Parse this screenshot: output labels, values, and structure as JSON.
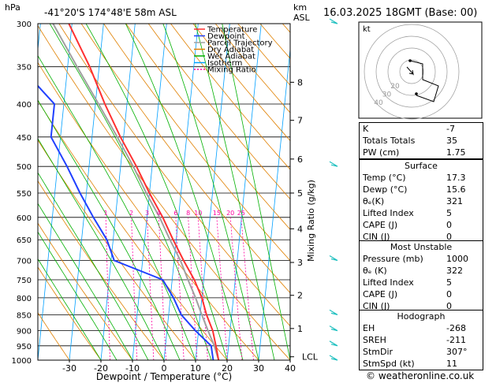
{
  "header": {
    "hpa_unit": "hPa",
    "location": "-41°20'S  174°48'E  58m  ASL",
    "km_unit": "km",
    "asl": "ASL",
    "datetime": "16.03.2025  18GMT  (Base: 00)"
  },
  "chart_data": {
    "type": "skew-t",
    "xlabel": "Dewpoint / Temperature (°C)",
    "ylabel_right": "Mixing Ratio (g/kg)",
    "pressure_ticks": [
      300,
      350,
      400,
      450,
      500,
      550,
      600,
      650,
      700,
      750,
      800,
      850,
      900,
      950,
      1000
    ],
    "temp_ticks": [
      -30,
      -20,
      -10,
      0,
      10,
      20,
      30,
      40
    ],
    "xlim": [
      -40,
      40
    ],
    "ylim_hpa": [
      1000,
      300
    ],
    "km_ticks": [
      {
        "label": "8",
        "p": 370
      },
      {
        "label": "7",
        "p": 424
      },
      {
        "label": "6",
        "p": 487
      },
      {
        "label": "5",
        "p": 550
      },
      {
        "label": "4",
        "p": 625
      },
      {
        "label": "3",
        "p": 705
      },
      {
        "label": "2",
        "p": 793
      },
      {
        "label": "1",
        "p": 893
      },
      {
        "label": "LCL",
        "p": 988
      }
    ],
    "mixing_ratio_labels": [
      "1",
      "2",
      "3",
      "4",
      "6",
      "8",
      "10",
      "15",
      "20",
      "25"
    ],
    "mixing_ratio_values": [
      1,
      2,
      3,
      4,
      6,
      8,
      10,
      15,
      20,
      25
    ],
    "legend": [
      {
        "name": "Temperature",
        "color": "#ff3030"
      },
      {
        "name": "Dewpoint",
        "color": "#2040ff"
      },
      {
        "name": "Parcel Trajectory",
        "color": "#a0a0a0"
      },
      {
        "name": "Dry Adiabat",
        "color": "#e08000"
      },
      {
        "name": "Wet Adiabat",
        "color": "#00b000"
      },
      {
        "name": "Isotherm",
        "color": "#00a0ff"
      },
      {
        "name": "Mixing Ratio",
        "color": "#ff00a0"
      }
    ],
    "series": [
      {
        "name": "Temperature",
        "p": [
          1000,
          950,
          900,
          850,
          800,
          750,
          700,
          650,
          600,
          550,
          500,
          450,
          400,
          350,
          300
        ],
        "t": [
          17.3,
          16,
          14.5,
          12,
          10,
          7,
          3,
          -1,
          -5,
          -10,
          -15,
          -21,
          -27,
          -33,
          -41
        ]
      },
      {
        "name": "Dewpoint",
        "p": [
          1000,
          950,
          900,
          850,
          800,
          750,
          700,
          650,
          600,
          550,
          500,
          450,
          400,
          350,
          300
        ],
        "t": [
          15.6,
          14.5,
          9,
          4,
          1,
          -3,
          -19,
          -22,
          -27,
          -32,
          -37,
          -43,
          -43,
          -55,
          -62
        ]
      },
      {
        "name": "Parcel Trajectory",
        "p": [
          1000,
          950,
          900,
          850,
          800,
          750,
          700,
          650,
          600,
          550,
          500,
          450,
          400,
          350,
          300
        ],
        "t": [
          17.3,
          15.5,
          13,
          10.5,
          8,
          5,
          2,
          -2,
          -6,
          -11,
          -16,
          -22,
          -29,
          -37,
          -46
        ]
      }
    ]
  },
  "hodograph": {
    "label": "kt",
    "ring_labels": [
      "20",
      "30",
      "40"
    ]
  },
  "indices": [
    {
      "label": "K",
      "value": "-7"
    },
    {
      "label": "Totals Totals",
      "value": "35"
    },
    {
      "label": "PW (cm)",
      "value": "1.75"
    }
  ],
  "surface": {
    "title": "Surface",
    "rows": [
      {
        "label": "Temp (°C)",
        "value": "17.3"
      },
      {
        "label": "Dewp (°C)",
        "value": "15.6"
      },
      {
        "label": "θₑ(K)",
        "value": "321"
      },
      {
        "label": "Lifted Index",
        "value": "5"
      },
      {
        "label": "CAPE (J)",
        "value": "0"
      },
      {
        "label": "CIN (J)",
        "value": "0"
      }
    ]
  },
  "most_unstable": {
    "title": "Most Unstable",
    "rows": [
      {
        "label": "Pressure (mb)",
        "value": "1000"
      },
      {
        "label": "θₑ (K)",
        "value": "322"
      },
      {
        "label": "Lifted Index",
        "value": "5"
      },
      {
        "label": "CAPE (J)",
        "value": "0"
      },
      {
        "label": "CIN (J)",
        "value": "0"
      }
    ]
  },
  "hodo_table": {
    "title": "Hodograph",
    "rows": [
      {
        "label": "EH",
        "value": "-268"
      },
      {
        "label": "SREH",
        "value": "-211"
      },
      {
        "label": "StmDir",
        "value": "307°"
      },
      {
        "label": "StmSpd (kt)",
        "value": "11"
      }
    ]
  },
  "footer": {
    "copyright": "© weatheronline.co.uk"
  },
  "colors": {
    "temp": "#ff3030",
    "dew": "#2040ff",
    "parcel": "#a0a0a0",
    "dry": "#e08000",
    "wet": "#00b000",
    "iso": "#00a0ff",
    "mix": "#ff00a0",
    "wind": "#20c0c0"
  }
}
